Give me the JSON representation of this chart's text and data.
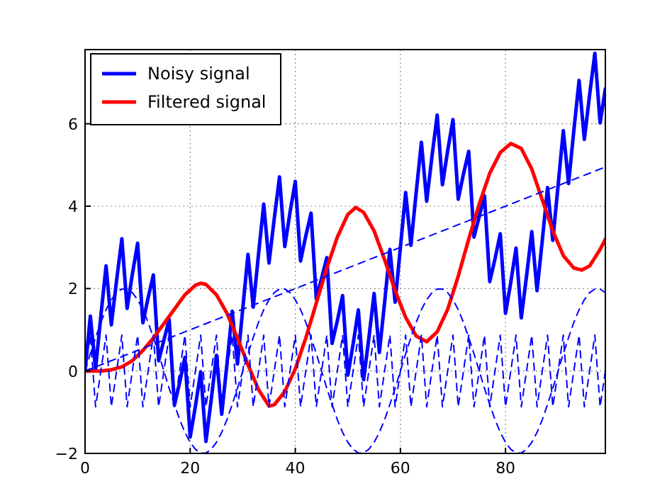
{
  "chart_data": {
    "type": "line",
    "x": [
      0,
      1,
      2,
      3,
      4,
      5,
      6,
      7,
      8,
      9,
      10,
      11,
      12,
      13,
      14,
      15,
      16,
      17,
      18,
      19,
      20,
      21,
      22,
      23,
      24,
      25,
      26,
      27,
      28,
      29,
      30,
      31,
      32,
      33,
      34,
      35,
      36,
      37,
      38,
      39,
      40,
      41,
      42,
      43,
      44,
      45,
      46,
      47,
      48,
      49,
      50,
      51,
      52,
      53,
      54,
      55,
      56,
      57,
      58,
      59,
      60,
      61,
      62,
      63,
      64,
      65,
      66,
      67,
      68,
      69,
      70,
      71,
      72,
      73,
      74,
      75,
      76,
      77,
      78,
      79,
      80,
      81,
      82,
      83,
      84,
      85,
      86,
      87,
      88,
      89,
      90,
      91,
      92,
      93,
      94,
      95,
      96,
      97,
      98,
      99
    ],
    "xlim": [
      0,
      99
    ],
    "ylim": [
      -2,
      7.8
    ],
    "xticks": [
      0,
      20,
      40,
      60,
      80
    ],
    "yticks": [
      -2,
      0,
      2,
      4,
      6
    ],
    "grid": true,
    "legend": "top left",
    "marker": "none",
    "series": [
      {
        "name": "Noisy signal",
        "color": "#0000ff",
        "line_style": "solid",
        "values": [
          0,
          1.33,
          0.05,
          1.33,
          2.55,
          1.12,
          2.2,
          3.21,
          1.52,
          2.35,
          3.1,
          1.17,
          1.78,
          2.33,
          0.25,
          0.75,
          1.25,
          -0.83,
          -0.28,
          0.33,
          -1.6,
          -0.85,
          -0.02,
          -1.71,
          -0.7,
          0.38,
          -1.05,
          0.17,
          1.45,
          0.17,
          1.5,
          2.83,
          1.55,
          2.83,
          4.05,
          2.62,
          3.7,
          4.71,
          3.02,
          3.85,
          4.6,
          2.67,
          3.28,
          3.83,
          1.75,
          2.25,
          2.75,
          0.67,
          1.22,
          1.83,
          -0.1,
          0.65,
          1.48,
          -0.21,
          0.8,
          1.88,
          0.45,
          1.67,
          2.95,
          1.67,
          3,
          4.33,
          3.05,
          4.33,
          5.55,
          4.12,
          5.2,
          6.21,
          4.52,
          5.35,
          6.1,
          4.17,
          4.78,
          5.33,
          3.25,
          3.75,
          4.25,
          2.17,
          2.72,
          3.33,
          1.4,
          2.15,
          2.98,
          1.29,
          2.3,
          3.38,
          1.95,
          3.17,
          4.45,
          3.17,
          4.5,
          5.83,
          4.55,
          5.83,
          7.05,
          5.62,
          6.7,
          7.71,
          6.02,
          6.85
        ]
      },
      {
        "name": "Filtered signal",
        "color": "#ff0000",
        "line_style": "solid",
        "x": [
          0,
          3,
          5,
          7,
          9,
          11,
          13,
          15,
          17,
          19,
          21,
          22,
          23,
          25,
          27,
          29,
          31,
          33,
          35,
          36,
          38,
          40,
          42,
          44,
          46,
          48,
          50,
          51.5,
          53,
          55,
          57,
          59,
          61,
          63,
          65,
          67,
          69,
          71,
          73,
          75,
          77,
          79,
          81,
          83,
          85,
          87,
          89,
          91,
          93,
          94.5,
          96,
          98,
          99
        ],
        "values": [
          0,
          0,
          0.03,
          0.1,
          0.25,
          0.5,
          0.8,
          1.15,
          1.5,
          1.85,
          2.08,
          2.13,
          2.1,
          1.85,
          1.4,
          0.8,
          0.15,
          -0.45,
          -0.85,
          -0.82,
          -0.5,
          0.05,
          0.8,
          1.65,
          2.5,
          3.25,
          3.8,
          3.97,
          3.85,
          3.4,
          2.7,
          1.95,
          1.3,
          0.85,
          0.71,
          0.95,
          1.5,
          2.3,
          3.2,
          4.05,
          4.8,
          5.3,
          5.52,
          5.4,
          4.9,
          4.15,
          3.4,
          2.8,
          2.5,
          2.45,
          2.55,
          2.95,
          3.2
        ]
      },
      {
        "color": "#0000ff",
        "line_style": "dashed",
        "x": [
          0,
          99
        ],
        "values": [
          0,
          4.95
        ]
      },
      {
        "color": "#0000ff",
        "line_style": "dashed",
        "values": [
          0,
          0.42,
          0.81,
          1.18,
          1.49,
          1.73,
          1.9,
          1.99,
          1.99,
          1.9,
          1.73,
          1.49,
          1.18,
          0.81,
          0.42,
          0,
          -0.42,
          -0.81,
          -1.18,
          -1.49,
          -1.73,
          -1.9,
          -1.99,
          -1.99,
          -1.9,
          -1.73,
          -1.49,
          -1.18,
          -0.81,
          -0.42,
          0,
          0.42,
          0.81,
          1.18,
          1.49,
          1.73,
          1.9,
          1.99,
          1.99,
          1.9,
          1.73,
          1.49,
          1.18,
          0.81,
          0.42,
          0,
          -0.42,
          -0.81,
          -1.18,
          -1.49,
          -1.73,
          -1.9,
          -1.99,
          -1.99,
          -1.9,
          -1.73,
          -1.49,
          -1.18,
          -0.81,
          -0.42,
          0,
          0.42,
          0.81,
          1.18,
          1.49,
          1.73,
          1.9,
          1.99,
          1.99,
          1.9,
          1.73,
          1.49,
          1.18,
          0.81,
          0.42,
          0,
          -0.42,
          -0.81,
          -1.18,
          -1.49,
          -1.73,
          -1.9,
          -1.99,
          -1.99,
          -1.9,
          -1.73,
          -1.49,
          -1.18,
          -0.81,
          -0.42,
          0,
          0.42,
          0.81,
          1.18,
          1.49,
          1.73,
          1.9,
          1.99,
          1.99,
          1.9
        ]
      },
      {
        "color": "#0000ff",
        "line_style": "dashed",
        "values": [
          0,
          0.87,
          -0.87,
          0,
          0.87,
          -0.87,
          0,
          0.87,
          -0.87,
          0,
          0.87,
          -0.87,
          0,
          0.87,
          -0.87,
          0,
          0.87,
          -0.87,
          0,
          0.87,
          -0.87,
          0,
          0.87,
          -0.87,
          0,
          0.87,
          -0.87,
          0,
          0.87,
          -0.87,
          0,
          0.87,
          -0.87,
          0,
          0.87,
          -0.87,
          0,
          0.87,
          -0.87,
          0,
          0.87,
          -0.87,
          0,
          0.87,
          -0.87,
          0,
          0.87,
          -0.87,
          0,
          0.87,
          -0.87,
          0,
          0.87,
          -0.87,
          0,
          0.87,
          -0.87,
          0,
          0.87,
          -0.87,
          0,
          0.87,
          -0.87,
          0,
          0.87,
          -0.87,
          0,
          0.87,
          -0.87,
          0,
          0.87,
          -0.87,
          0,
          0.87,
          -0.87,
          0,
          0.87,
          -0.87,
          0,
          0.87,
          -0.87,
          0,
          0.87,
          -0.87,
          0,
          0.87,
          -0.87,
          0,
          0.87,
          -0.87,
          0,
          0.87,
          -0.87,
          0,
          0.87,
          -0.87,
          0,
          0.87,
          -0.87,
          0
        ]
      }
    ]
  }
}
